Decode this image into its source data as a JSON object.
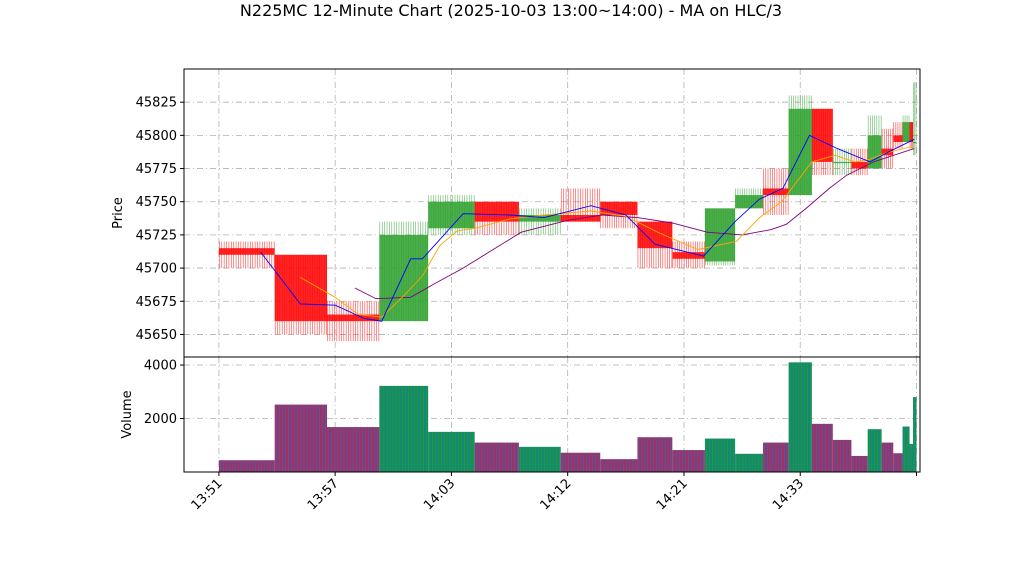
{
  "chart_data": {
    "type": "candlestick",
    "title": "N225MC 12-Minute Chart (2025-10-03 13:00~14:00) - MA on HLC/3",
    "colors": {
      "up": "#2ca02c",
      "down": "#ff0000",
      "ma_fast": "#0000ff",
      "ma_mid": "#ffa500",
      "ma_slow": "#800080",
      "volume_up": "#1f77b4",
      "volume_down": "#d62728",
      "grid": "#b0b0b0"
    },
    "grid": true,
    "price_panel": {
      "ylabel": "Price",
      "ylim": [
        45633,
        45850
      ],
      "yticks": [
        45650,
        45675,
        45700,
        45725,
        45750,
        45775,
        45800,
        45825
      ],
      "candles": [
        {
          "t": 0,
          "w": 4.8,
          "o": 45715,
          "h": 45720,
          "l": 45700,
          "c": 45710
        },
        {
          "t": 4.8,
          "w": 4.5,
          "o": 45710,
          "h": 45710,
          "l": 45650,
          "c": 45660
        },
        {
          "t": 9.3,
          "w": 4.5,
          "o": 45665,
          "h": 45675,
          "l": 45645,
          "c": 45660
        },
        {
          "t": 13.8,
          "w": 4.2,
          "o": 45660,
          "h": 45735,
          "l": 45660,
          "c": 45725
        },
        {
          "t": 18,
          "w": 4.0,
          "o": 45730,
          "h": 45755,
          "l": 45725,
          "c": 45750
        },
        {
          "t": 22,
          "w": 3.8,
          "o": 45750,
          "h": 45750,
          "l": 45725,
          "c": 45735
        },
        {
          "t": 25.8,
          "w": 3.6,
          "o": 45735,
          "h": 45745,
          "l": 45725,
          "c": 45740
        },
        {
          "t": 29.4,
          "w": 3.4,
          "o": 45740,
          "h": 45760,
          "l": 45735,
          "c": 45735
        },
        {
          "t": 32.8,
          "w": 3.2,
          "o": 45750,
          "h": 45750,
          "l": 45730,
          "c": 45740
        },
        {
          "t": 36,
          "w": 3.0,
          "o": 45735,
          "h": 45735,
          "l": 45700,
          "c": 45715
        },
        {
          "t": 39,
          "w": 2.8,
          "o": 45712,
          "h": 45720,
          "l": 45700,
          "c": 45707
        },
        {
          "t": 41.8,
          "w": 2.6,
          "o": 45705,
          "h": 45745,
          "l": 45702,
          "c": 45745
        },
        {
          "t": 44.4,
          "w": 2.4,
          "o": 45745,
          "h": 45760,
          "l": 45745,
          "c": 45755
        },
        {
          "t": 46.8,
          "w": 2.2,
          "o": 45760,
          "h": 45775,
          "l": 45740,
          "c": 45755
        },
        {
          "t": 49,
          "w": 2.0,
          "o": 45755,
          "h": 45830,
          "l": 45755,
          "c": 45820
        },
        {
          "t": 51,
          "w": 1.8,
          "o": 45820,
          "h": 45820,
          "l": 45770,
          "c": 45780
        },
        {
          "t": 52.8,
          "w": 1.6,
          "o": 45780,
          "h": 45790,
          "l": 45770,
          "c": 45780
        },
        {
          "t": 54.4,
          "w": 1.4,
          "o": 45780,
          "h": 45790,
          "l": 45770,
          "c": 45775
        },
        {
          "t": 55.8,
          "w": 1.2,
          "o": 45775,
          "h": 45815,
          "l": 45775,
          "c": 45800
        },
        {
          "t": 57,
          "w": 1.0,
          "o": 45790,
          "h": 45805,
          "l": 45775,
          "c": 45785
        },
        {
          "t": 58,
          "w": 0.8,
          "o": 45800,
          "h": 45810,
          "l": 45790,
          "c": 45795
        },
        {
          "t": 58.8,
          "w": 0.6,
          "o": 45795,
          "h": 45815,
          "l": 45795,
          "c": 45810
        },
        {
          "t": 59.4,
          "w": 0.3,
          "o": 45810,
          "h": 45810,
          "l": 45790,
          "c": 45795
        },
        {
          "t": 59.7,
          "w": 0.3,
          "o": 45795,
          "h": 45840,
          "l": 45785,
          "c": 45795
        }
      ],
      "ma_fast": [
        [
          3.6,
          45712
        ],
        [
          7,
          45673
        ],
        [
          10,
          45672
        ],
        [
          12.5,
          45662
        ],
        [
          14,
          45660
        ],
        [
          16.5,
          45707
        ],
        [
          17.5,
          45707
        ],
        [
          21,
          45741
        ],
        [
          25,
          45740
        ],
        [
          28,
          45738
        ],
        [
          32,
          45747
        ],
        [
          35,
          45740
        ],
        [
          37.5,
          45718
        ],
        [
          41.7,
          45709
        ],
        [
          44.4,
          45735
        ],
        [
          46.5,
          45752
        ],
        [
          48.5,
          45760
        ],
        [
          50.8,
          45800
        ],
        [
          53.2,
          45790
        ],
        [
          56,
          45780
        ],
        [
          57.5,
          45787
        ],
        [
          59.8,
          45797
        ]
      ],
      "ma_mid": [
        [
          7,
          45693
        ],
        [
          10,
          45678
        ],
        [
          12,
          45665
        ],
        [
          14,
          45663
        ],
        [
          16,
          45680
        ],
        [
          17.5,
          45694
        ],
        [
          19,
          45717
        ],
        [
          20.5,
          45728
        ],
        [
          22,
          45730
        ],
        [
          25,
          45737
        ],
        [
          28,
          45740
        ],
        [
          32,
          45743
        ],
        [
          35,
          45739
        ],
        [
          38,
          45726
        ],
        [
          41.2,
          45714
        ],
        [
          44.5,
          45720
        ],
        [
          46.5,
          45738
        ],
        [
          48.4,
          45750
        ],
        [
          51,
          45780
        ],
        [
          53,
          45785
        ],
        [
          54.7,
          45780
        ],
        [
          56,
          45782
        ],
        [
          57.5,
          45787
        ],
        [
          59.8,
          45792
        ]
      ],
      "ma_slow": [
        [
          11.7,
          45685
        ],
        [
          13.5,
          45677
        ],
        [
          16.5,
          45678
        ],
        [
          18.5,
          45688
        ],
        [
          21,
          45700
        ],
        [
          26,
          45727
        ],
        [
          30,
          45736
        ],
        [
          33,
          45740
        ],
        [
          36,
          45738
        ],
        [
          39,
          45734
        ],
        [
          42,
          45727
        ],
        [
          45,
          45725
        ],
        [
          47.5,
          45729
        ],
        [
          48.8,
          45733
        ],
        [
          50.5,
          45745
        ],
        [
          52.5,
          45760
        ],
        [
          54,
          45770
        ],
        [
          56.3,
          45780
        ],
        [
          59.8,
          45790
        ]
      ]
    },
    "volume_panel": {
      "ylabel": "Volume",
      "ylim": [
        0,
        4300
      ],
      "yticks": [
        2000,
        4000
      ],
      "bars": [
        {
          "t": 0,
          "w": 4.8,
          "v": 440,
          "up": false
        },
        {
          "t": 4.8,
          "w": 4.5,
          "v": 2520,
          "up": false
        },
        {
          "t": 9.3,
          "w": 4.5,
          "v": 1680,
          "up": false
        },
        {
          "t": 13.8,
          "w": 4.2,
          "v": 3220,
          "up": true
        },
        {
          "t": 18,
          "w": 4.0,
          "v": 1500,
          "up": true
        },
        {
          "t": 22,
          "w": 3.8,
          "v": 1100,
          "up": false
        },
        {
          "t": 25.8,
          "w": 3.6,
          "v": 940,
          "up": true
        },
        {
          "t": 29.4,
          "w": 3.4,
          "v": 720,
          "up": false
        },
        {
          "t": 32.8,
          "w": 3.2,
          "v": 480,
          "up": false
        },
        {
          "t": 36,
          "w": 3.0,
          "v": 1300,
          "up": false
        },
        {
          "t": 39,
          "w": 2.8,
          "v": 820,
          "up": false
        },
        {
          "t": 41.8,
          "w": 2.6,
          "v": 1250,
          "up": true
        },
        {
          "t": 44.4,
          "w": 2.4,
          "v": 680,
          "up": true
        },
        {
          "t": 46.8,
          "w": 2.2,
          "v": 1100,
          "up": false
        },
        {
          "t": 49,
          "w": 2.0,
          "v": 4100,
          "up": true
        },
        {
          "t": 51,
          "w": 1.8,
          "v": 1800,
          "up": false
        },
        {
          "t": 52.8,
          "w": 1.6,
          "v": 1200,
          "up": false
        },
        {
          "t": 54.4,
          "w": 1.4,
          "v": 600,
          "up": false
        },
        {
          "t": 55.8,
          "w": 1.2,
          "v": 1600,
          "up": true
        },
        {
          "t": 57,
          "w": 1.0,
          "v": 1100,
          "up": false
        },
        {
          "t": 58,
          "w": 0.8,
          "v": 700,
          "up": false
        },
        {
          "t": 58.8,
          "w": 0.6,
          "v": 1700,
          "up": true
        },
        {
          "t": 59.4,
          "w": 0.3,
          "v": 1050,
          "up": true
        },
        {
          "t": 59.7,
          "w": 0.3,
          "v": 2800,
          "up": true
        }
      ]
    },
    "xlim": [
      -3,
      60.3
    ],
    "xticks": [
      {
        "t": 0,
        "label": "13:51"
      },
      {
        "t": 10,
        "label": "13:57"
      },
      {
        "t": 20,
        "label": "14:03"
      },
      {
        "t": 30,
        "label": "14:12"
      },
      {
        "t": 40,
        "label": "14:21"
      },
      {
        "t": 50,
        "label": "14:33"
      },
      {
        "t": 60,
        "label": ""
      }
    ]
  }
}
